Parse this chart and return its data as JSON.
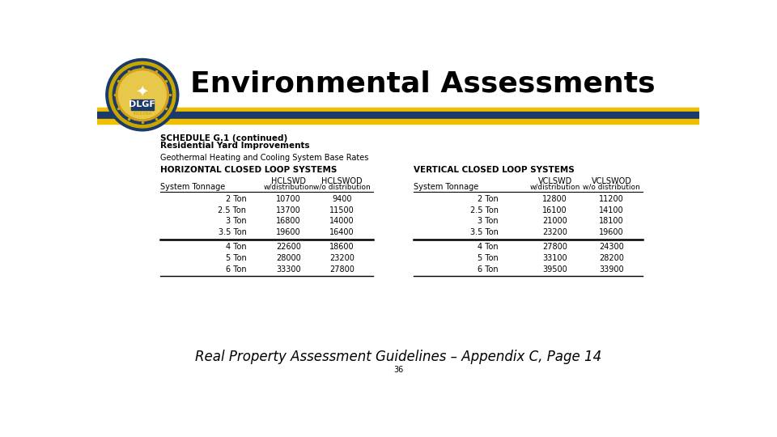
{
  "title": "Environmental Assessments",
  "subtitle1": "SCHEDULE G.1 (continued)",
  "subtitle2": "Residential Yard Improvements",
  "subtitle3": "Geothermal Heating and Cooling System Base Rates",
  "section_left": "HORIZONTAL CLOSED LOOP SYSTEMS",
  "section_right": "VERTICAL CLOSED LOOP SYSTEMS",
  "rows_left": [
    [
      "2 Ton",
      "10700",
      "9400"
    ],
    [
      "2.5 Ton",
      "13700",
      "11500"
    ],
    [
      "3 Ton",
      "16800",
      "14000"
    ],
    [
      "3.5 Ton",
      "19600",
      "16400"
    ],
    [
      "4 Ton",
      "22600",
      "18600"
    ],
    [
      "5 Ton",
      "28000",
      "23200"
    ],
    [
      "6 Ton",
      "33300",
      "27800"
    ]
  ],
  "rows_right": [
    [
      "2 Ton",
      "12800",
      "11200"
    ],
    [
      "2.5 Ton",
      "16100",
      "14100"
    ],
    [
      "3 Ton",
      "21000",
      "18100"
    ],
    [
      "3.5 Ton",
      "23200",
      "19600"
    ],
    [
      "4 Ton",
      "27800",
      "24300"
    ],
    [
      "5 Ton",
      "33100",
      "28200"
    ],
    [
      "6 Ton",
      "39500",
      "33900"
    ]
  ],
  "divider_after_row": 3,
  "footer_text": "Real Property Assessment Guidelines – Appendix C, Page 14",
  "page_number": "36",
  "bar_yellow": "#F0C000",
  "bar_blue": "#1B3A6B",
  "bg_color": "#FFFFFF",
  "title_color": "#000000"
}
